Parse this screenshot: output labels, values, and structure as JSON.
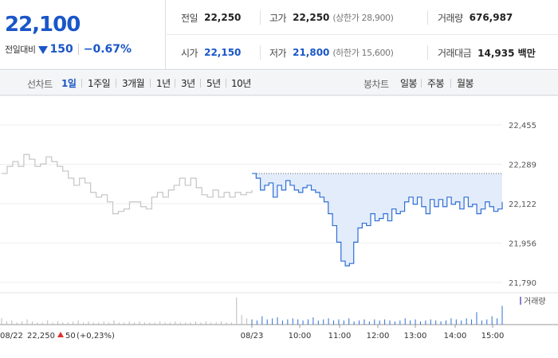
{
  "quote": {
    "current_price": "22,100",
    "change_label": "전일대비",
    "change_direction_icon": "down-triangle-icon",
    "change_value": "150",
    "change_rate": "−0.67%"
  },
  "stats": {
    "prev_close": {
      "label": "전일",
      "value": "22,250"
    },
    "high": {
      "label": "고가",
      "value": "22,250",
      "sub": "(상한가 28,900)"
    },
    "volume": {
      "label": "거래량",
      "value": "676,987"
    },
    "open": {
      "label": "시가",
      "value": "22,150"
    },
    "low": {
      "label": "저가",
      "value": "21,800",
      "sub": "(하한가 15,600)"
    },
    "trade_amount": {
      "label": "거래대금",
      "value": "14,935 백만"
    }
  },
  "tabs": {
    "line_label": "선차트",
    "line_periods": [
      "1일",
      "1주일",
      "3개월",
      "1년",
      "3년",
      "5년",
      "10년"
    ],
    "active_period": "1일",
    "candle_label": "봉차트",
    "candle_periods": [
      "일봉",
      "주봉",
      "월봉"
    ]
  },
  "chart_data": {
    "type": "line",
    "y_ticks": [
      "22,455",
      "22,289",
      "22,122",
      "21,956",
      "21,790"
    ],
    "ylim": [
      21790,
      22455
    ],
    "reference_value": 22250,
    "x_ticks": [
      "08/23",
      "10:00",
      "11:00",
      "12:00",
      "13:00",
      "14:00",
      "15:00"
    ],
    "prev_day_label": "08/22",
    "prev_day_close": "22,250",
    "prev_day_change": "50",
    "prev_day_rate": "(+0,23%)",
    "volume_legend": "거래량",
    "colors": {
      "today": "#2f6fd6",
      "prev_day": "#c4c4c4",
      "fill": "#e3ecfa",
      "up": "#e0312e",
      "volume": "#8f7fc9"
    },
    "series": [
      {
        "values": [
          22250,
          22280,
          22300,
          22280,
          22330,
          22310,
          22280,
          22290,
          22320,
          22300,
          22280,
          22260,
          22230,
          22200,
          22230,
          22210,
          22170,
          22150,
          22160,
          22130,
          22080,
          22090,
          22100,
          22130,
          22130,
          22110,
          22100,
          22150,
          22170,
          22150,
          22180,
          22200,
          22230,
          22200,
          22230,
          22190,
          22160,
          22150,
          22180,
          22150,
          22170,
          22150,
          22170,
          22160,
          22170,
          22180
        ]
      },
      {
        "values": [
          22250,
          22230,
          22180,
          22200,
          22210,
          22150,
          22200,
          22180,
          22220,
          22200,
          22180,
          22170,
          22190,
          22200,
          22180,
          22170,
          22150,
          22130,
          22080,
          22030,
          21960,
          21880,
          21860,
          21870,
          21960,
          22020,
          22040,
          22030,
          22080,
          22050,
          22060,
          22080,
          22050,
          22100,
          22080,
          22090,
          22130,
          22150,
          22120,
          22150,
          22110,
          22080,
          22140,
          22110,
          22140,
          22110,
          22150,
          22120,
          22130,
          22100,
          22150,
          22110,
          22120,
          22080,
          22100,
          22130,
          22110,
          22090,
          22100,
          22130
        ]
      }
    ],
    "volume": [
      6,
      3,
      4,
      2,
      3,
      5,
      3,
      2,
      2,
      4,
      2,
      3,
      2,
      2,
      3,
      4,
      2,
      3,
      2,
      2,
      3,
      2,
      4,
      2,
      2,
      3,
      2,
      3,
      2,
      2,
      2,
      3,
      2,
      2,
      3,
      2,
      2,
      2,
      3,
      2,
      3,
      2,
      2,
      3,
      2,
      2,
      26,
      9,
      6,
      5,
      4,
      8,
      5,
      6,
      7,
      4,
      5,
      6,
      5,
      4,
      5,
      7,
      4,
      5,
      6,
      4,
      5,
      4,
      6,
      3,
      4,
      5,
      3,
      5,
      4,
      5,
      4,
      3,
      4,
      6,
      4,
      5,
      3,
      4,
      5,
      4,
      3,
      4,
      6,
      5,
      4,
      6,
      5,
      12,
      4,
      5,
      8,
      6,
      18
    ]
  }
}
